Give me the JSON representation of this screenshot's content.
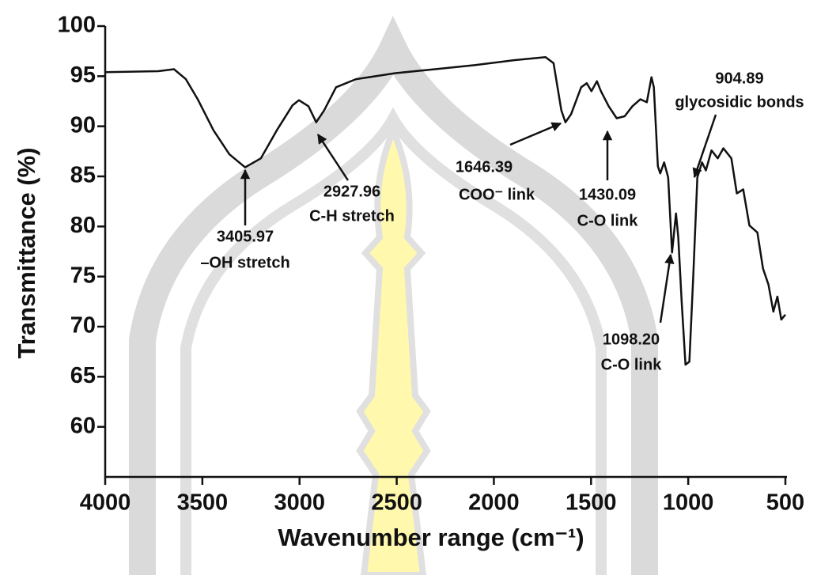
{
  "chart_data": {
    "type": "line",
    "xlabel": "Wavenumber range (cm⁻¹)",
    "ylabel": "Transmittance (%)",
    "color": "#111111",
    "x": [
      4000,
      3727,
      3646,
      3585,
      3524,
      3443,
      3361,
      3280,
      3199,
      3117,
      3036,
      3003,
      2954,
      2914,
      2873,
      2812,
      2710,
      2507,
      2303,
      2100,
      1897,
      1734,
      1693,
      1653,
      1632,
      1603,
      1551,
      1522,
      1498,
      1470,
      1449,
      1409,
      1368,
      1327,
      1287,
      1246,
      1213,
      1189,
      1177,
      1156,
      1144,
      1124,
      1103,
      1083,
      1063,
      1051,
      1034,
      1014,
      994,
      974,
      953,
      929,
      909,
      880,
      848,
      819,
      778,
      750,
      717,
      685,
      644,
      615,
      587,
      562,
      541,
      521,
      500
    ],
    "values": [
      95.4,
      95.5,
      95.7,
      94.7,
      92.7,
      89.6,
      87.2,
      85.9,
      86.8,
      89.6,
      92.1,
      92.6,
      92.0,
      90.4,
      91.6,
      93.9,
      94.7,
      95.3,
      95.7,
      96.1,
      96.6,
      96.9,
      96.3,
      91.6,
      90.4,
      91.2,
      93.9,
      94.3,
      93.5,
      94.5,
      93.5,
      92.0,
      90.8,
      91.0,
      92.0,
      92.7,
      92.4,
      94.9,
      93.9,
      86.0,
      85.3,
      86.4,
      84.9,
      77.4,
      81.3,
      78.9,
      72.6,
      66.2,
      66.5,
      75.0,
      84.9,
      86.4,
      85.6,
      87.6,
      86.8,
      87.8,
      86.8,
      83.3,
      83.7,
      80.1,
      79.4,
      75.8,
      74.2,
      71.5,
      73.0,
      70.7,
      71.2
    ],
    "xlim": [
      4000,
      500
    ],
    "xticks": [
      4000,
      3500,
      3000,
      2500,
      2000,
      1500,
      1000,
      500
    ],
    "ylim": [
      55,
      100
    ],
    "yticks": [
      60,
      65,
      70,
      75,
      80,
      85,
      90,
      95,
      100
    ],
    "annotations": [
      {
        "lines": [
          "3405.97",
          "–OH stretch"
        ]
      },
      {
        "lines": [
          "2927.96",
          "C-H stretch"
        ]
      },
      {
        "lines": [
          "1646.39",
          "COO⁻ link"
        ]
      },
      {
        "lines": [
          "1430.09",
          "C-O link"
        ]
      },
      {
        "lines": [
          "1098.20",
          "C-O link"
        ]
      },
      {
        "lines": [
          "904.89",
          "glycosidic bonds"
        ]
      }
    ]
  }
}
